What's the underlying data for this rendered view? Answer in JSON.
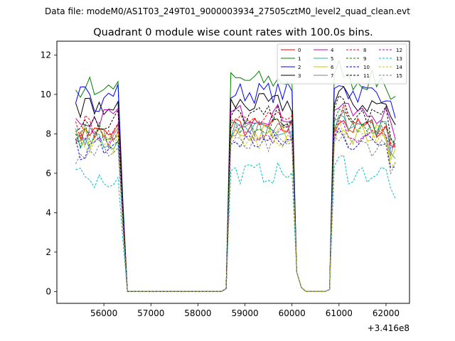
{
  "figure": {
    "suptitle": "Data file: modeM0/AS1T03_249T01_9000003934_27505cztM0_level2_quad_clean.evt"
  },
  "chart_data": {
    "type": "line",
    "title": "Quadrant 0 module wise count rates with 100.0s bins.",
    "xlabel": "",
    "ylabel": "",
    "x_offset_label": "+3.416e8",
    "xlim": [
      55000,
      62500
    ],
    "ylim": [
      -0.6,
      12.7
    ],
    "x_ticks": [
      56000,
      57000,
      58000,
      59000,
      60000,
      61000,
      62000
    ],
    "x_tick_labels": [
      "56000",
      "57000",
      "58000",
      "59000",
      "60000",
      "61000",
      "62000"
    ],
    "y_ticks": [
      0,
      2,
      4,
      6,
      8,
      10,
      12
    ],
    "y_tick_labels": [
      "0",
      "2",
      "4",
      "6",
      "8",
      "10",
      "12"
    ],
    "grid": false,
    "legend_position": "top-right",
    "legend_columns": 4,
    "gti_segments": [
      [
        55400,
        56300
      ],
      [
        58700,
        60000
      ],
      [
        60900,
        62200
      ]
    ],
    "gap_ramps": [
      [
        56300,
        56500
      ],
      [
        58500,
        58700
      ],
      [
        60000,
        60250
      ],
      [
        60700,
        60900
      ]
    ],
    "series": [
      {
        "name": "0",
        "color": "#ff0000",
        "dashed": false,
        "level": 8.3
      },
      {
        "name": "1",
        "color": "#008000",
        "dashed": false,
        "level": 10.7
      },
      {
        "name": "2",
        "color": "#0000ff",
        "dashed": false,
        "level": 10.1
      },
      {
        "name": "3",
        "color": "#000000",
        "dashed": false,
        "level": 9.5
      },
      {
        "name": "4",
        "color": "#c000c0",
        "dashed": false,
        "level": 9.0
      },
      {
        "name": "5",
        "color": "#20b2aa",
        "dashed": false,
        "level": 8.1
      },
      {
        "name": "6",
        "color": "#c8c800",
        "dashed": false,
        "level": 8.0
      },
      {
        "name": "7",
        "color": "#808080",
        "dashed": false,
        "level": 8.2
      },
      {
        "name": "8",
        "color": "#ff0000",
        "dashed": true,
        "level": 8.6
      },
      {
        "name": "9",
        "color": "#008000",
        "dashed": true,
        "level": 8.3
      },
      {
        "name": "10",
        "color": "#0000ff",
        "dashed": true,
        "level": 7.6
      },
      {
        "name": "11",
        "color": "#000000",
        "dashed": true,
        "level": 8.9
      },
      {
        "name": "12",
        "color": "#c000c0",
        "dashed": true,
        "level": 8.0
      },
      {
        "name": "13",
        "color": "#00c0c0",
        "dashed": true,
        "level": 6.0
      },
      {
        "name": "14",
        "color": "#c8c800",
        "dashed": true,
        "level": 7.8
      },
      {
        "name": "15",
        "color": "#808080",
        "dashed": true,
        "level": 7.4
      }
    ]
  }
}
